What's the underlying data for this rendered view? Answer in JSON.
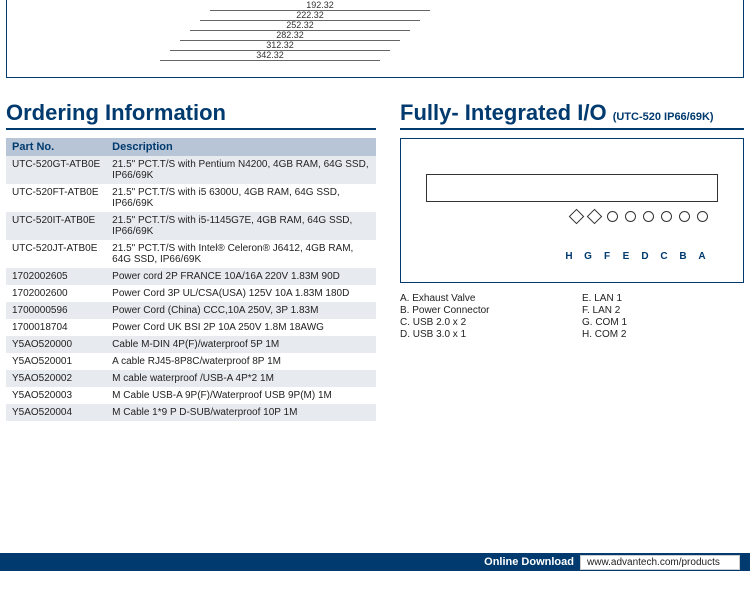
{
  "dimensions": {
    "font_size": 9,
    "color": "#333333",
    "labels": [
      "192.32",
      "222.32",
      "252.32",
      "282.32",
      "312.32",
      "342.32"
    ]
  },
  "colors": {
    "brand": "#003a6e",
    "header_bg": "#b7c5d6",
    "zebra": "#e7ebf0",
    "text": "#222222",
    "white": "#ffffff"
  },
  "ordering": {
    "title": "Ordering Information",
    "columns": [
      "Part No.",
      "Description"
    ],
    "rows": [
      {
        "pn": "UTC-520GT-ATB0E",
        "desc": "21.5\" PCT.T/S with Pentium N4200, 4GB RAM, 64G SSD, IP66/69K"
      },
      {
        "pn": "UTC-520FT-ATB0E",
        "desc": "21.5\" PCT.T/S with i5 6300U, 4GB RAM, 64G SSD, IP66/69K"
      },
      {
        "pn": "UTC-520IT-ATB0E",
        "desc": "21.5\" PCT.T/S with i5-1145G7E, 4GB RAM, 64G SSD, IP66/69K"
      },
      {
        "pn": "UTC-520JT-ATB0E",
        "desc": "21.5\" PCT.T/S with Intel® Celeron® J6412, 4GB RAM, 64G SSD, IP66/69K"
      },
      {
        "pn": "1702002605",
        "desc": "Power cord 2P FRANCE 10A/16A 220V 1.83M 90D"
      },
      {
        "pn": "1702002600",
        "desc": "Power Cord 3P UL/CSA(USA) 125V 10A 1.83M 180D"
      },
      {
        "pn": "1700000596",
        "desc": "Power Cord (China) CCC,10A 250V, 3P 1.83M"
      },
      {
        "pn": "1700018704",
        "desc": "Power Cord UK BSI 2P 10A 250V 1.8M 18AWG"
      },
      {
        "pn": "Y5AO520000",
        "desc": "Cable M-DIN 4P(F)/waterproof 5P 1M"
      },
      {
        "pn": "Y5AO520001",
        "desc": "A cable RJ45-8P8C/waterproof 8P 1M"
      },
      {
        "pn": "Y5AO520002",
        "desc": "M cable waterproof /USB-A 4P*2 1M"
      },
      {
        "pn": "Y5AO520003",
        "desc": "M Cable USB-A 9P(F)/Waterproof USB 9P(M) 1M"
      },
      {
        "pn": "Y5AO520004",
        "desc": "M Cable 1*9 P D-SUB/waterproof 10P 1M"
      }
    ]
  },
  "io": {
    "title": "Fully- Integrated I/O",
    "subtitle": "(UTC-520 IP66/69K)",
    "letters": [
      "H",
      "G",
      "F",
      "E",
      "D",
      "C",
      "B",
      "A"
    ],
    "legend_left": [
      "A. Exhaust Valve",
      "B. Power Connector",
      "C. USB 2.0 x 2",
      "D. USB 3.0 x 1"
    ],
    "legend_right": [
      "E. LAN 1",
      "F. LAN 2",
      "G. COM 1",
      "H. COM 2"
    ]
  },
  "footer": {
    "label": "Online Download",
    "url": "www.advantech.com/products"
  }
}
